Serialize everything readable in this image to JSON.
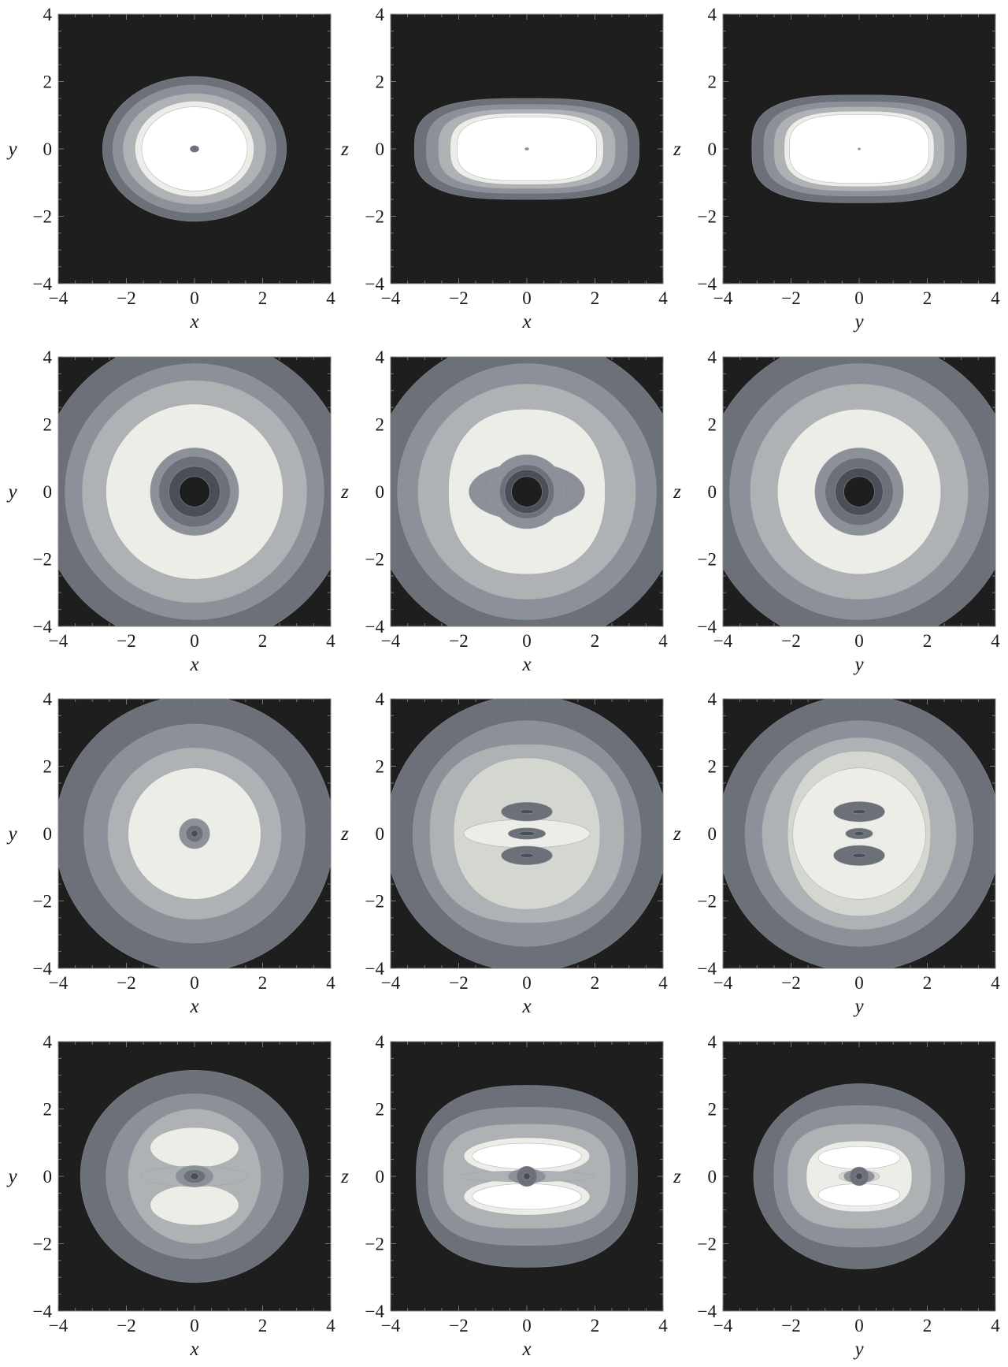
{
  "figure": {
    "rows": 4,
    "cols": 3
  },
  "colors": {
    "background": "#1e1e1e",
    "levels": [
      "#1e1e1e",
      "#4a4f57",
      "#6b7079",
      "#8c9199",
      "#aeb2b4",
      "#d4d6d0",
      "#ecede6",
      "#ffffff"
    ]
  },
  "chart_data": [
    {
      "panel": "row1-xy",
      "type": "heatmap",
      "plot": "contour",
      "xlabel": "x",
      "ylabel": "y",
      "xlim": [
        -4,
        4
      ],
      "ylim": [
        -4,
        4
      ],
      "x_ticks": [
        "−4",
        "−2",
        "0",
        "2",
        "4"
      ],
      "y_ticks": [
        "−4",
        "−2",
        "0",
        "2",
        "4"
      ],
      "contours": [
        {
          "shape": "ellipse",
          "level": 2,
          "rx": 2.7,
          "ry": 2.15
        },
        {
          "shape": "ellipse",
          "level": 3,
          "rx": 2.4,
          "ry": 1.9
        },
        {
          "shape": "ellipse",
          "level": 4,
          "rx": 2.1,
          "ry": 1.65
        },
        {
          "shape": "ellipse",
          "level": 6,
          "rx": 1.75,
          "ry": 1.42
        },
        {
          "shape": "ellipse",
          "level": 7,
          "rx": 1.55,
          "ry": 1.25
        },
        {
          "shape": "ellipse",
          "level": 2,
          "rx": 0.13,
          "ry": 0.1
        }
      ]
    },
    {
      "panel": "row1-xz",
      "type": "heatmap",
      "plot": "contour",
      "xlabel": "x",
      "ylabel": "z",
      "xlim": [
        -4,
        4
      ],
      "ylim": [
        -4,
        4
      ],
      "x_ticks": [
        "−4",
        "−2",
        "0",
        "2",
        "4"
      ],
      "y_ticks": [
        "−4",
        "−2",
        "0",
        "2",
        "4"
      ],
      "contours": [
        {
          "shape": "superellipse",
          "level": 2,
          "rx": 3.3,
          "ry": 1.5,
          "n": 3
        },
        {
          "shape": "superellipse",
          "level": 3,
          "rx": 2.95,
          "ry": 1.32,
          "n": 3
        },
        {
          "shape": "superellipse",
          "level": 4,
          "rx": 2.6,
          "ry": 1.18,
          "n": 3
        },
        {
          "shape": "superellipse",
          "level": 6,
          "rx": 2.25,
          "ry": 1.06,
          "n": 3
        },
        {
          "shape": "superellipse",
          "level": 7,
          "rx": 2.05,
          "ry": 0.95,
          "n": 3
        },
        {
          "shape": "ellipse",
          "level": 3,
          "rx": 0.06,
          "ry": 0.04
        }
      ]
    },
    {
      "panel": "row1-yz",
      "type": "heatmap",
      "plot": "contour",
      "xlabel": "y",
      "ylabel": "z",
      "xlim": [
        -4,
        4
      ],
      "ylim": [
        -4,
        4
      ],
      "x_ticks": [
        "−4",
        "−2",
        "0",
        "2",
        "4"
      ],
      "y_ticks": [
        "−4",
        "−2",
        "0",
        "2",
        "4"
      ],
      "contours": [
        {
          "shape": "superellipse",
          "level": 2,
          "rx": 3.15,
          "ry": 1.6,
          "n": 3
        },
        {
          "shape": "superellipse",
          "level": 3,
          "rx": 2.8,
          "ry": 1.4,
          "n": 3
        },
        {
          "shape": "superellipse",
          "level": 4,
          "rx": 2.5,
          "ry": 1.25,
          "n": 3
        },
        {
          "shape": "superellipse",
          "level": 6,
          "rx": 2.2,
          "ry": 1.12,
          "n": 3
        },
        {
          "shape": "superellipse",
          "level": 7,
          "rx": 2.05,
          "ry": 1.02,
          "n": 3
        },
        {
          "shape": "ellipse",
          "level": 3,
          "rx": 0.04,
          "ry": 0.03
        }
      ]
    },
    {
      "panel": "row2-xy",
      "type": "heatmap",
      "plot": "contour",
      "xlabel": "x",
      "ylabel": "y",
      "xlim": [
        -4,
        4
      ],
      "ylim": [
        -4,
        4
      ],
      "x_ticks": [
        "−4",
        "−2",
        "0",
        "2",
        "4"
      ],
      "y_ticks": [
        "−4",
        "−2",
        "0",
        "2",
        "4"
      ],
      "contours": [
        {
          "shape": "ellipse",
          "level": 2,
          "rx": 4.6,
          "ry": 4.6
        },
        {
          "shape": "ellipse",
          "level": 3,
          "rx": 3.8,
          "ry": 3.8
        },
        {
          "shape": "ellipse",
          "level": 4,
          "rx": 3.3,
          "ry": 3.3
        },
        {
          "shape": "ellipse",
          "level": 6,
          "rx": 2.6,
          "ry": 2.6
        },
        {
          "shape": "ellipse",
          "level": 3,
          "rx": 1.3,
          "ry": 1.3
        },
        {
          "shape": "ellipse",
          "level": 2,
          "rx": 1.05,
          "ry": 1.05
        },
        {
          "shape": "ellipse",
          "level": 1,
          "rx": 0.75,
          "ry": 0.75
        },
        {
          "shape": "ellipse",
          "level": 0,
          "rx": 0.45,
          "ry": 0.45
        }
      ]
    },
    {
      "panel": "row2-xz",
      "type": "heatmap",
      "plot": "contour",
      "xlabel": "x",
      "ylabel": "z",
      "xlim": [
        -4,
        4
      ],
      "ylim": [
        -4,
        4
      ],
      "x_ticks": [
        "−4",
        "−2",
        "0",
        "2",
        "4"
      ],
      "y_ticks": [
        "−4",
        "−2",
        "0",
        "2",
        "4"
      ],
      "contours": [
        {
          "shape": "ellipse",
          "level": 2,
          "rx": 4.6,
          "ry": 4.6
        },
        {
          "shape": "ellipse",
          "level": 3,
          "rx": 3.8,
          "ry": 3.8
        },
        {
          "shape": "ellipse",
          "level": 4,
          "rx": 3.2,
          "ry": 3.2
        },
        {
          "shape": "superellipse",
          "level": 6,
          "rx": 2.3,
          "ry": 2.45,
          "n": 2.3
        },
        {
          "shape": "ellipse",
          "level": 3,
          "rx": 1.7,
          "ry": 0.85
        },
        {
          "shape": "ellipse",
          "level": 3,
          "rx": 1.1,
          "ry": 1.1
        },
        {
          "shape": "ellipse",
          "level": 2,
          "rx": 0.8,
          "ry": 0.8
        },
        {
          "shape": "ellipse",
          "level": 1,
          "rx": 0.65,
          "ry": 0.65
        },
        {
          "shape": "ellipse",
          "level": 0,
          "rx": 0.45,
          "ry": 0.45
        }
      ]
    },
    {
      "panel": "row2-yz",
      "type": "heatmap",
      "plot": "contour",
      "xlabel": "y",
      "ylabel": "z",
      "xlim": [
        -4,
        4
      ],
      "ylim": [
        -4,
        4
      ],
      "x_ticks": [
        "−4",
        "−2",
        "0",
        "2",
        "4"
      ],
      "y_ticks": [
        "−4",
        "−2",
        "0",
        "2",
        "4"
      ],
      "contours": [
        {
          "shape": "ellipse",
          "level": 2,
          "rx": 4.6,
          "ry": 4.6
        },
        {
          "shape": "ellipse",
          "level": 3,
          "rx": 3.8,
          "ry": 3.8
        },
        {
          "shape": "ellipse",
          "level": 4,
          "rx": 3.2,
          "ry": 3.2
        },
        {
          "shape": "ellipse",
          "level": 6,
          "rx": 2.4,
          "ry": 2.45
        },
        {
          "shape": "ellipse",
          "level": 3,
          "rx": 1.3,
          "ry": 1.3
        },
        {
          "shape": "ellipse",
          "level": 2,
          "rx": 1.0,
          "ry": 1.0
        },
        {
          "shape": "ellipse",
          "level": 1,
          "rx": 0.7,
          "ry": 0.7
        },
        {
          "shape": "ellipse",
          "level": 0,
          "rx": 0.45,
          "ry": 0.45
        }
      ]
    },
    {
      "panel": "row3-xy",
      "type": "heatmap",
      "plot": "contour",
      "xlabel": "x",
      "ylabel": "y",
      "xlim": [
        -4,
        4
      ],
      "ylim": [
        -4,
        4
      ],
      "x_ticks": [
        "−4",
        "−2",
        "0",
        "2",
        "4"
      ],
      "y_ticks": [
        "−4",
        "−2",
        "0",
        "2",
        "4"
      ],
      "contours": [
        {
          "shape": "ellipse",
          "level": 2,
          "rx": 4.1,
          "ry": 4.1
        },
        {
          "shape": "ellipse",
          "level": 3,
          "rx": 3.25,
          "ry": 3.25
        },
        {
          "shape": "ellipse",
          "level": 4,
          "rx": 2.55,
          "ry": 2.55
        },
        {
          "shape": "ellipse",
          "level": 6,
          "rx": 1.95,
          "ry": 1.95
        },
        {
          "shape": "ellipse",
          "level": 3,
          "rx": 0.45,
          "ry": 0.45
        },
        {
          "shape": "ellipse",
          "level": 2,
          "rx": 0.25,
          "ry": 0.25
        },
        {
          "shape": "ellipse",
          "level": 1,
          "rx": 0.1,
          "ry": 0.1
        }
      ]
    },
    {
      "panel": "row3-xz",
      "type": "heatmap",
      "plot": "contour",
      "xlabel": "x",
      "ylabel": "z",
      "xlim": [
        -4,
        4
      ],
      "ylim": [
        -4,
        4
      ],
      "x_ticks": [
        "−4",
        "−2",
        "0",
        "2",
        "4"
      ],
      "y_ticks": [
        "−4",
        "−2",
        "0",
        "2",
        "4"
      ],
      "contours": [
        {
          "shape": "ellipse",
          "level": 2,
          "rx": 4.15,
          "ry": 4.1
        },
        {
          "shape": "ellipse",
          "level": 3,
          "rx": 3.35,
          "ry": 3.35
        },
        {
          "shape": "superellipse",
          "level": 4,
          "rx": 2.85,
          "ry": 2.65,
          "n": 2.4
        },
        {
          "shape": "superellipse",
          "level": 5,
          "rx": 2.15,
          "ry": 2.25,
          "n": 2.2
        },
        {
          "shape": "ellipse",
          "level": 6,
          "rx": 1.85,
          "ry": 0.42
        },
        {
          "shape": "ellipse",
          "level": 2,
          "cy": 0.65,
          "rx": 0.75,
          "ry": 0.28
        },
        {
          "shape": "ellipse",
          "level": 1,
          "cy": 0.65,
          "rx": 0.2,
          "ry": 0.06
        },
        {
          "shape": "ellipse",
          "level": 2,
          "cy": -0.65,
          "rx": 0.75,
          "ry": 0.28
        },
        {
          "shape": "ellipse",
          "level": 1,
          "cy": -0.65,
          "rx": 0.2,
          "ry": 0.06
        },
        {
          "shape": "ellipse",
          "level": 2,
          "rx": 0.55,
          "ry": 0.17
        },
        {
          "shape": "ellipse",
          "level": 1,
          "rx": 0.25,
          "ry": 0.06
        }
      ]
    },
    {
      "panel": "row3-yz",
      "type": "heatmap",
      "plot": "contour",
      "xlabel": "y",
      "ylabel": "z",
      "xlim": [
        -4,
        4
      ],
      "ylim": [
        -4,
        4
      ],
      "x_ticks": [
        "−4",
        "−2",
        "0",
        "2",
        "4"
      ],
      "y_ticks": [
        "−4",
        "−2",
        "0",
        "2",
        "4"
      ],
      "contours": [
        {
          "shape": "ellipse",
          "level": 2,
          "rx": 4.15,
          "ry": 4.1
        },
        {
          "shape": "ellipse",
          "level": 3,
          "rx": 3.35,
          "ry": 3.35
        },
        {
          "shape": "ellipse",
          "level": 4,
          "rx": 2.85,
          "ry": 2.85
        },
        {
          "shape": "superellipse",
          "level": 5,
          "rx": 2.1,
          "ry": 2.45,
          "n": 2.2
        },
        {
          "shape": "ellipse",
          "level": 6,
          "rx": 1.95,
          "ry": 1.95
        },
        {
          "shape": "ellipse",
          "level": 2,
          "cy": 0.65,
          "rx": 0.75,
          "ry": 0.3
        },
        {
          "shape": "ellipse",
          "level": 1,
          "cy": 0.65,
          "rx": 0.2,
          "ry": 0.06
        },
        {
          "shape": "ellipse",
          "level": 2,
          "cy": -0.65,
          "rx": 0.75,
          "ry": 0.3
        },
        {
          "shape": "ellipse",
          "level": 1,
          "cy": -0.65,
          "rx": 0.2,
          "ry": 0.06
        },
        {
          "shape": "ellipse",
          "level": 2,
          "rx": 0.4,
          "ry": 0.16
        },
        {
          "shape": "ellipse",
          "level": 1,
          "rx": 0.15,
          "ry": 0.06
        }
      ]
    },
    {
      "panel": "row4-xy",
      "type": "heatmap",
      "plot": "contour",
      "xlabel": "x",
      "ylabel": "y",
      "xlim": [
        -4,
        4
      ],
      "ylim": [
        -4,
        4
      ],
      "x_ticks": [
        "−4",
        "−2",
        "0",
        "2",
        "4"
      ],
      "y_ticks": [
        "−4",
        "−2",
        "0",
        "2",
        "4"
      ],
      "contours": [
        {
          "shape": "ellipse",
          "level": 2,
          "rx": 3.35,
          "ry": 3.15
        },
        {
          "shape": "ellipse",
          "level": 3,
          "rx": 2.6,
          "ry": 2.45
        },
        {
          "shape": "ellipse",
          "level": 4,
          "rx": 1.95,
          "ry": 2.0
        },
        {
          "shape": "ellipse",
          "level": 6,
          "cy": 0.85,
          "rx": 1.3,
          "ry": 0.6
        },
        {
          "shape": "ellipse",
          "level": 6,
          "cy": -0.85,
          "rx": 1.3,
          "ry": 0.6
        },
        {
          "shape": "ellipse",
          "level": 4,
          "rx": 1.55,
          "ry": 0.3
        },
        {
          "shape": "ellipse",
          "level": 3,
          "rx": 0.55,
          "ry": 0.32
        },
        {
          "shape": "ellipse",
          "level": 2,
          "rx": 0.32,
          "ry": 0.2
        },
        {
          "shape": "ellipse",
          "level": 1,
          "rx": 0.12,
          "ry": 0.1
        }
      ]
    },
    {
      "panel": "row4-xz",
      "type": "heatmap",
      "plot": "contour",
      "xlabel": "x",
      "ylabel": "z",
      "xlim": [
        -4,
        4
      ],
      "ylim": [
        -4,
        4
      ],
      "x_ticks": [
        "−4",
        "−2",
        "0",
        "2",
        "4"
      ],
      "y_ticks": [
        "−4",
        "−2",
        "0",
        "2",
        "4"
      ],
      "contours": [
        {
          "shape": "superellipse",
          "level": 2,
          "rx": 3.25,
          "ry": 2.7,
          "n": 2.5
        },
        {
          "shape": "superellipse",
          "level": 3,
          "rx": 2.9,
          "ry": 2.05,
          "n": 2.8
        },
        {
          "shape": "superellipse",
          "level": 4,
          "rx": 2.45,
          "ry": 1.55,
          "n": 3
        },
        {
          "shape": "ellipse",
          "level": 6,
          "cy": 0.6,
          "rx": 1.85,
          "ry": 0.55
        },
        {
          "shape": "ellipse",
          "level": 6,
          "cy": -0.6,
          "rx": 1.85,
          "ry": 0.55
        },
        {
          "shape": "ellipse",
          "level": 7,
          "cy": 0.6,
          "rx": 1.6,
          "ry": 0.38
        },
        {
          "shape": "ellipse",
          "level": 7,
          "cy": -0.6,
          "rx": 1.6,
          "ry": 0.38
        },
        {
          "shape": "ellipse",
          "level": 4,
          "rx": 2.0,
          "ry": 0.16
        },
        {
          "shape": "ellipse",
          "level": 3,
          "rx": 0.55,
          "ry": 0.22
        },
        {
          "shape": "ellipse",
          "level": 2,
          "rx": 0.3,
          "ry": 0.3
        },
        {
          "shape": "ellipse",
          "level": 1,
          "rx": 0.1,
          "ry": 0.1
        }
      ]
    },
    {
      "panel": "row4-yz",
      "type": "heatmap",
      "plot": "contour",
      "xlabel": "y",
      "ylabel": "z",
      "xlim": [
        -4,
        4
      ],
      "ylim": [
        -4,
        4
      ],
      "x_ticks": [
        "−4",
        "−2",
        "0",
        "2",
        "4"
      ],
      "y_ticks": [
        "−4",
        "−2",
        "0",
        "2",
        "4"
      ],
      "contours": [
        {
          "shape": "ellipse",
          "level": 2,
          "rx": 3.1,
          "ry": 2.75
        },
        {
          "shape": "superellipse",
          "level": 3,
          "rx": 2.5,
          "ry": 2.1,
          "n": 2.5
        },
        {
          "shape": "superellipse",
          "level": 4,
          "rx": 2.1,
          "ry": 1.55,
          "n": 2.8
        },
        {
          "shape": "superellipse",
          "level": 6,
          "rx": 1.55,
          "ry": 1.05,
          "n": 2.5
        },
        {
          "shape": "ellipse",
          "level": 7,
          "cy": 0.55,
          "rx": 1.2,
          "ry": 0.33
        },
        {
          "shape": "ellipse",
          "level": 7,
          "cy": -0.55,
          "rx": 1.2,
          "ry": 0.33
        },
        {
          "shape": "ellipse",
          "level": 5,
          "rx": 0.6,
          "ry": 0.18
        },
        {
          "shape": "ellipse",
          "level": 3,
          "rx": 0.45,
          "ry": 0.2
        },
        {
          "shape": "ellipse",
          "level": 2,
          "rx": 0.28,
          "ry": 0.28
        },
        {
          "shape": "ellipse",
          "level": 1,
          "rx": 0.1,
          "ry": 0.1
        }
      ]
    }
  ]
}
